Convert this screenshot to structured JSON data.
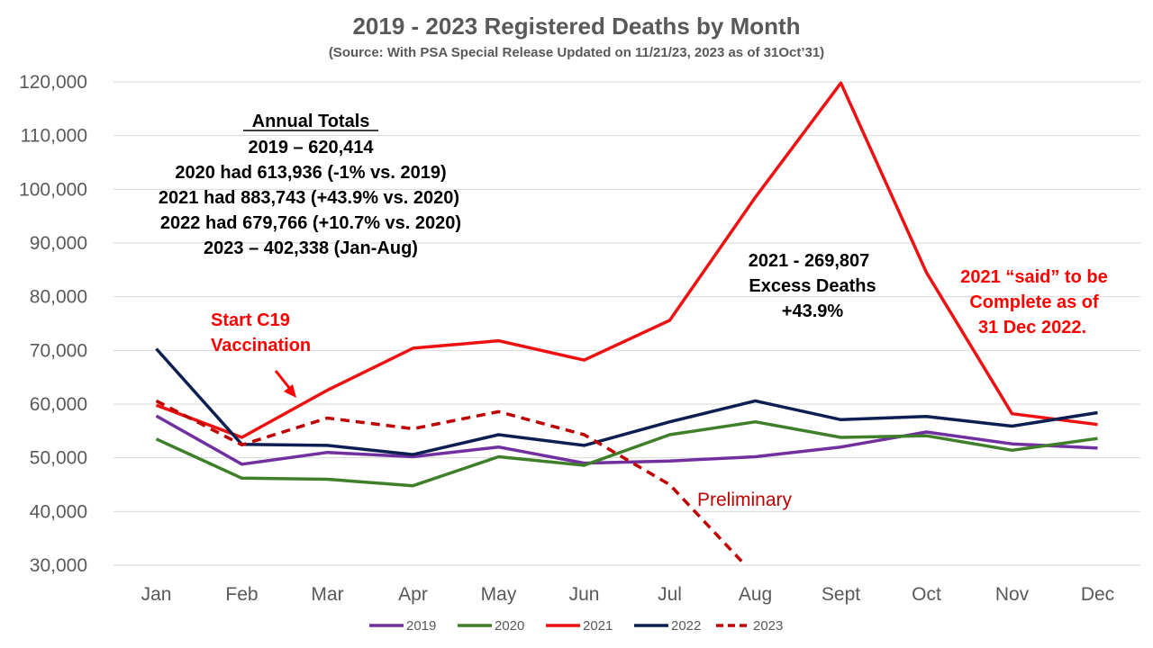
{
  "colors": {
    "grid": "#d9d9d9",
    "axis_text": "#595959",
    "annotation_black": "#000000",
    "annotation_red": "#ff0000",
    "annotation_dark_red": "#c00000"
  },
  "chart_data": {
    "type": "line",
    "title": "2019 - 2023 Registered Deaths by Month",
    "subtitle": "(Source: With PSA Special Release Updated on 11/21/23, 2023 as of 31Oct’31)",
    "xlabel": "",
    "ylabel": "",
    "categories": [
      "Jan",
      "Feb",
      "Mar",
      "Apr",
      "May",
      "Jun",
      "Jul",
      "Aug",
      "Sept",
      "Oct",
      "Nov",
      "Dec"
    ],
    "ylim": [
      30000,
      120000
    ],
    "yticks": [
      30000,
      40000,
      50000,
      60000,
      70000,
      80000,
      90000,
      100000,
      110000,
      120000
    ],
    "ytick_labels": [
      "30,000",
      "40,000",
      "50,000",
      "60,000",
      "70,000",
      "80,000",
      "90,000",
      "100,000",
      "110,000",
      "120,000"
    ],
    "grid": true,
    "legend_position": "bottom",
    "series": [
      {
        "name": "2019",
        "color": "#7030a0",
        "dashed": false,
        "values": [
          57800,
          48800,
          51000,
          50200,
          52000,
          49000,
          49400,
          50200,
          52000,
          54800,
          52600,
          51800
        ]
      },
      {
        "name": "2020",
        "color": "#3f7f2a",
        "dashed": false,
        "values": [
          53500,
          46200,
          46000,
          44800,
          50200,
          48600,
          54300,
          56700,
          53800,
          54100,
          51400,
          53600
        ]
      },
      {
        "name": "2021",
        "color": "#ee1111",
        "dashed": false,
        "values": [
          59800,
          53800,
          62600,
          70400,
          71800,
          68200,
          75600,
          98500,
          119800,
          84500,
          58200,
          56200
        ]
      },
      {
        "name": "2022",
        "color": "#0d1f52",
        "dashed": false,
        "values": [
          70300,
          52500,
          52300,
          50600,
          54300,
          52300,
          56700,
          60600,
          57100,
          57700,
          55900,
          58400
        ]
      },
      {
        "name": "2023",
        "color": "#c00000",
        "dashed": true,
        "values": [
          60600,
          52400,
          57400,
          55400,
          58600,
          54300,
          45000,
          28000,
          null,
          null,
          null,
          null
        ]
      }
    ],
    "annotations": {
      "annual_totals": {
        "heading": "Annual Totals",
        "lines": [
          "2019 – 620,414",
          "2020 had 613,936 (-1% vs. 2019)",
          "2021 had 883,743 (+43.9% vs. 2020)",
          "2022 had 679,766 (+10.7% vs. 2020)",
          "2023 – 402,338 (Jan-Aug)"
        ]
      },
      "excess": [
        "2021 - 269,807",
        "Excess Deaths",
        "+43.9%"
      ],
      "complete": [
        "2021 “said” to be",
        "Complete as of",
        "31 Dec 2022."
      ],
      "vaccination": [
        "Start C19",
        "Vaccination"
      ],
      "preliminary": "Preliminary"
    }
  }
}
